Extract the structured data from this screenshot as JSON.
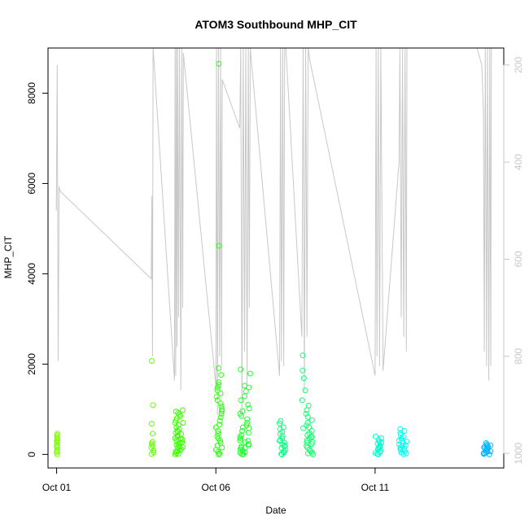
{
  "chart_data": {
    "type": "scatter",
    "title": "ATOM3 Southbound MHP_CIT",
    "xlabel": "Date",
    "ylabel": "MHP_CIT",
    "x_ticks": [
      {
        "x": 1,
        "label": "Oct 01"
      },
      {
        "x": 6,
        "label": "Oct 06"
      },
      {
        "x": 11,
        "label": "Oct 11"
      }
    ],
    "y_ticks": [
      0,
      2000,
      4000,
      6000,
      8000
    ],
    "right_ticks": [
      200,
      400,
      600,
      800,
      1000
    ],
    "xlim": [
      0.73,
      15.04
    ],
    "ylim": [
      -300,
      9000
    ],
    "right_ylim": [
      1030,
      165
    ],
    "grid": false,
    "clusters": [
      {
        "x0": 1.0,
        "x1": 1.03,
        "color": "#80ff00",
        "values": [
          100,
          150,
          180,
          210,
          250,
          280,
          300,
          330,
          360,
          400,
          430,
          460,
          0,
          40,
          70
        ]
      },
      {
        "x0": 3.97,
        "x1": 4.05,
        "color": "#66ff00",
        "values": [
          2070,
          1090,
          680,
          460,
          280,
          240,
          150,
          90,
          40,
          10,
          200
        ]
      },
      {
        "x0": 4.7,
        "x1": 4.97,
        "color": "#3dff00",
        "values": [
          980,
          950,
          920,
          880,
          850,
          800,
          750,
          700,
          650,
          600,
          560,
          520,
          480,
          450,
          420,
          390,
          360,
          330,
          300,
          270,
          240,
          210,
          180,
          150,
          120,
          90,
          60,
          30,
          10,
          0,
          700,
          500,
          350,
          260,
          160,
          80
        ]
      },
      {
        "x0": 6.0,
        "x1": 6.2,
        "color": "#2dff10",
        "values": [
          8650,
          4620,
          1910,
          1760,
          1600,
          1540,
          1480,
          1420,
          1350,
          1280,
          1200,
          1130,
          1060,
          1000,
          960,
          900,
          820,
          740,
          660,
          600,
          520,
          460,
          400,
          350,
          300,
          250,
          200,
          150,
          100,
          60,
          20,
          0
        ]
      },
      {
        "x0": 6.75,
        "x1": 7.08,
        "color": "#22ff30",
        "values": [
          1880,
          1790,
          1520,
          1480,
          1400,
          1290,
          1200,
          1100,
          1020,
          960,
          900,
          850,
          780,
          700,
          640,
          580,
          520,
          480,
          430,
          390,
          350,
          310,
          270,
          230,
          200,
          170,
          140,
          110,
          80,
          50,
          30,
          10,
          0,
          600,
          300,
          150
        ]
      },
      {
        "x0": 8.0,
        "x1": 8.2,
        "color": "#10ff80",
        "values": [
          740,
          690,
          600,
          560,
          500,
          450,
          400,
          350,
          300,
          260,
          220,
          180,
          140,
          100,
          70,
          40,
          10,
          0,
          320,
          200
        ]
      },
      {
        "x0": 8.7,
        "x1": 9.05,
        "color": "#14ff70",
        "values": [
          2190,
          1860,
          1690,
          1420,
          1200,
          1080,
          980,
          900,
          830,
          760,
          700,
          640,
          580,
          520,
          470,
          430,
          390,
          350,
          310,
          270,
          230,
          190,
          150,
          110,
          70,
          40,
          20,
          0,
          600,
          380,
          260
        ]
      },
      {
        "x0": 11.0,
        "x1": 11.2,
        "color": "#00ffd0",
        "values": [
          400,
          360,
          320,
          280,
          240,
          200,
          170,
          140,
          110,
          80,
          50,
          30,
          10,
          0,
          260,
          150
        ]
      },
      {
        "x0": 11.75,
        "x1": 12.0,
        "color": "#00fff0",
        "values": [
          560,
          520,
          480,
          430,
          390,
          350,
          310,
          280,
          250,
          220,
          190,
          160,
          130,
          100,
          70,
          40,
          20,
          0,
          300,
          200,
          120
        ]
      },
      {
        "x0": 14.4,
        "x1": 14.65,
        "color": "#00b8ff",
        "values": [
          250,
          220,
          200,
          180,
          160,
          140,
          120,
          100,
          80,
          60,
          40,
          20,
          10,
          0,
          190,
          130,
          70,
          30
        ]
      }
    ],
    "line_series": {
      "name": "",
      "color": "#c8c8c8",
      "axis": "right",
      "points": [
        [
          0.99,
          500
        ],
        [
          1.02,
          200
        ],
        [
          1.05,
          810
        ],
        [
          1.08,
          450
        ],
        [
          1.11,
          460
        ],
        [
          3.97,
          640
        ],
        [
          3.99,
          470
        ],
        [
          4.01,
          800
        ],
        [
          4.03,
          165
        ],
        [
          4.05,
          185
        ],
        [
          4.7,
          850
        ],
        [
          4.72,
          165
        ],
        [
          4.74,
          840
        ],
        [
          4.76,
          165
        ],
        [
          4.78,
          780
        ],
        [
          4.8,
          165
        ],
        [
          4.83,
          720
        ],
        [
          4.86,
          165
        ],
        [
          4.9,
          870
        ],
        [
          4.93,
          165
        ],
        [
          4.96,
          700
        ],
        [
          4.98,
          175
        ],
        [
          6.0,
          860
        ],
        [
          6.02,
          165
        ],
        [
          6.05,
          920
        ],
        [
          6.08,
          165
        ],
        [
          6.12,
          800
        ],
        [
          6.15,
          165
        ],
        [
          6.18,
          820
        ],
        [
          6.2,
          230
        ],
        [
          6.75,
          330
        ],
        [
          6.78,
          165
        ],
        [
          6.82,
          920
        ],
        [
          6.86,
          165
        ],
        [
          6.9,
          790
        ],
        [
          6.94,
          165
        ],
        [
          6.98,
          860
        ],
        [
          7.02,
          165
        ],
        [
          7.05,
          700
        ],
        [
          7.08,
          165
        ],
        [
          8.0,
          840
        ],
        [
          8.03,
          165
        ],
        [
          8.06,
          810
        ],
        [
          8.1,
          165
        ],
        [
          8.13,
          820
        ],
        [
          8.16,
          165
        ],
        [
          8.2,
          165
        ],
        [
          8.7,
          760
        ],
        [
          8.74,
          165
        ],
        [
          8.78,
          870
        ],
        [
          8.82,
          165
        ],
        [
          8.86,
          760
        ],
        [
          8.9,
          165
        ],
        [
          8.95,
          190
        ],
        [
          11.0,
          840
        ],
        [
          11.03,
          165
        ],
        [
          11.06,
          800
        ],
        [
          11.1,
          165
        ],
        [
          11.14,
          820
        ],
        [
          11.18,
          165
        ],
        [
          11.25,
          830
        ],
        [
          11.75,
          400
        ],
        [
          11.78,
          165
        ],
        [
          11.82,
          720
        ],
        [
          11.86,
          165
        ],
        [
          11.9,
          760
        ],
        [
          11.94,
          165
        ],
        [
          11.98,
          790
        ],
        [
          12.0,
          165
        ],
        [
          14.2,
          165
        ],
        [
          14.35,
          200
        ],
        [
          14.4,
          300
        ],
        [
          14.43,
          790
        ],
        [
          14.46,
          165
        ],
        [
          14.5,
          820
        ],
        [
          14.53,
          165
        ],
        [
          14.57,
          850
        ],
        [
          14.6,
          165
        ],
        [
          14.63,
          820
        ],
        [
          14.65,
          165
        ]
      ]
    }
  }
}
